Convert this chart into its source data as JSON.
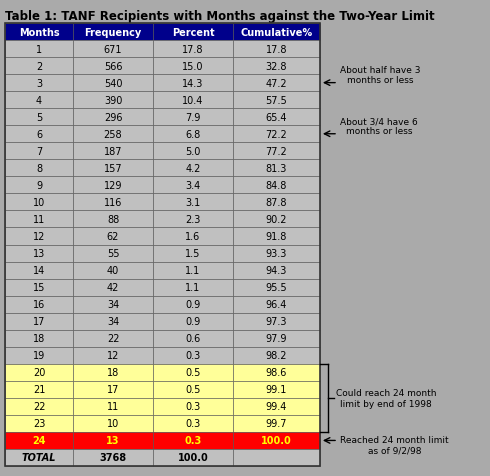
{
  "title": "Table 1: TANF Recipients with Months against the Two-Year Limit",
  "headers": [
    "Months",
    "Frequency",
    "Percent",
    "Cumulative%"
  ],
  "rows": [
    [
      "1",
      "671",
      "17.8",
      "17.8"
    ],
    [
      "2",
      "566",
      "15.0",
      "32.8"
    ],
    [
      "3",
      "540",
      "14.3",
      "47.2"
    ],
    [
      "4",
      "390",
      "10.4",
      "57.5"
    ],
    [
      "5",
      "296",
      "7.9",
      "65.4"
    ],
    [
      "6",
      "258",
      "6.8",
      "72.2"
    ],
    [
      "7",
      "187",
      "5.0",
      "77.2"
    ],
    [
      "8",
      "157",
      "4.2",
      "81.3"
    ],
    [
      "9",
      "129",
      "3.4",
      "84.8"
    ],
    [
      "10",
      "116",
      "3.1",
      "87.8"
    ],
    [
      "11",
      "88",
      "2.3",
      "90.2"
    ],
    [
      "12",
      "62",
      "1.6",
      "91.8"
    ],
    [
      "13",
      "55",
      "1.5",
      "93.3"
    ],
    [
      "14",
      "40",
      "1.1",
      "94.3"
    ],
    [
      "15",
      "42",
      "1.1",
      "95.5"
    ],
    [
      "16",
      "34",
      "0.9",
      "96.4"
    ],
    [
      "17",
      "34",
      "0.9",
      "97.3"
    ],
    [
      "18",
      "22",
      "0.6",
      "97.9"
    ],
    [
      "19",
      "12",
      "0.3",
      "98.2"
    ],
    [
      "20",
      "18",
      "0.5",
      "98.6"
    ],
    [
      "21",
      "17",
      "0.5",
      "99.1"
    ],
    [
      "22",
      "11",
      "0.3",
      "99.4"
    ],
    [
      "23",
      "10",
      "0.3",
      "99.7"
    ],
    [
      "24",
      "13",
      "0.3",
      "100.0"
    ],
    [
      "TOTAL",
      "3768",
      "100.0",
      ""
    ]
  ],
  "header_bg": "#00008B",
  "header_fg": "#FFFFFF",
  "normal_bg": "#C0C0C0",
  "normal_fg": "#000000",
  "yellow_bg": "#FFFF99",
  "yellow_fg": "#000000",
  "red_bg": "#FF0000",
  "red_fg": "#FFFF00",
  "total_bg": "#C0C0C0",
  "total_fg": "#000000",
  "figure_bg": "#AAAAAA",
  "yellow_rows": [
    19,
    20,
    21,
    22
  ],
  "red_rows": [
    23
  ],
  "title_fontsize": 8.5,
  "cell_fontsize": 7.0,
  "ann_fontsize": 6.5
}
